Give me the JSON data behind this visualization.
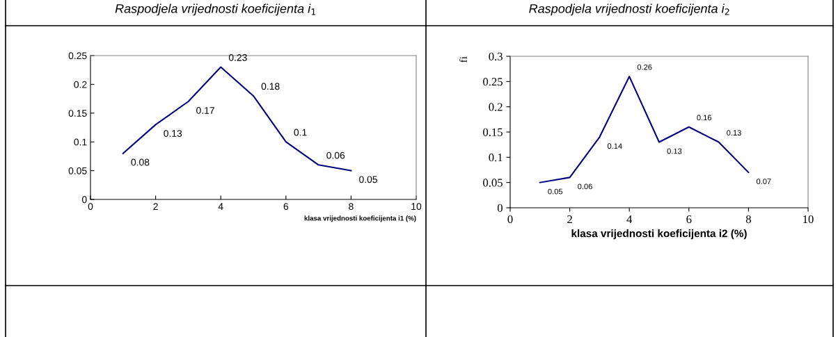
{
  "chart_data": [
    {
      "type": "line",
      "title": "Raspodjela vrijednosti koeficijenta i$_{1}$",
      "xlabel": "klasa vrijednosti koeficijenta i1 (%)",
      "x": [
        1,
        2,
        3,
        4,
        5,
        6,
        7,
        8
      ],
      "series": [
        {
          "color": "#000080",
          "values": [
            0.08,
            0.13,
            0.17,
            0.23,
            0.18,
            0.1,
            0.06,
            0.05
          ]
        }
      ],
      "xlim": [
        0,
        10
      ],
      "xticks": [
        0,
        2,
        4,
        6,
        8,
        10
      ],
      "ylim": [
        0,
        0.25
      ],
      "yticks": [
        0,
        0.05,
        0.1,
        0.15,
        0.2,
        0.25
      ],
      "data_labels": true,
      "grid": false,
      "legend": false,
      "marker": "none",
      "line_style": "solid"
    },
    {
      "type": "line",
      "title": "Raspodjela vrijednosti koeficijenta i$_{2}$",
      "xlabel": "klasa vrijednosti koeficijenta i2 (%)",
      "ylabel": "fi",
      "x": [
        1,
        2,
        3,
        4,
        5,
        6,
        7,
        8
      ],
      "series": [
        {
          "color": "#000080",
          "values": [
            0.05,
            0.06,
            0.14,
            0.26,
            0.13,
            0.16,
            0.13,
            0.07
          ]
        }
      ],
      "xlim": [
        0,
        10
      ],
      "xticks": [
        0,
        2,
        4,
        6,
        8,
        10
      ],
      "ylim": [
        0,
        0.3
      ],
      "yticks": [
        0,
        0.05,
        0.1,
        0.15,
        0.2,
        0.25,
        0.3
      ],
      "data_labels": true,
      "grid": false,
      "legend": false,
      "marker": "none",
      "line_style": "solid"
    }
  ]
}
